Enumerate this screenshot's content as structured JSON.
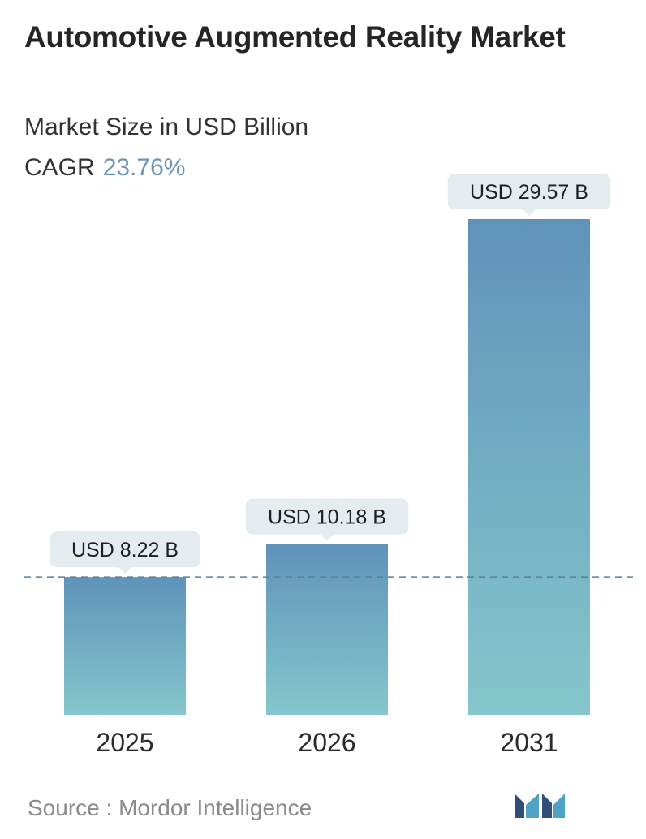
{
  "title": "Automotive Augmented Reality Market",
  "subtitle": "Market Size in USD Billion",
  "cagr_label": "CAGR",
  "cagr_value": "23.76%",
  "source_label": "Source :",
  "source_value": "Mordor Intelligence",
  "logo_icon": "mordor-intelligence-logo",
  "colors": {
    "bar_top": "#5f93ba",
    "bar_bottom": "#86c6cc",
    "label_bg": "#e4ecef",
    "dashed_line": "#5a7f9c"
  },
  "chart_data": {
    "type": "bar",
    "categories": [
      "2025",
      "2026",
      "2031"
    ],
    "values": [
      8.22,
      10.18,
      29.57
    ],
    "value_labels": [
      "USD 8.22 B",
      "USD 10.18 B",
      "USD 29.57 B"
    ],
    "ylabel": "",
    "xlabel": "",
    "grid": false,
    "reference_line": "dashed line at 2025 value"
  }
}
